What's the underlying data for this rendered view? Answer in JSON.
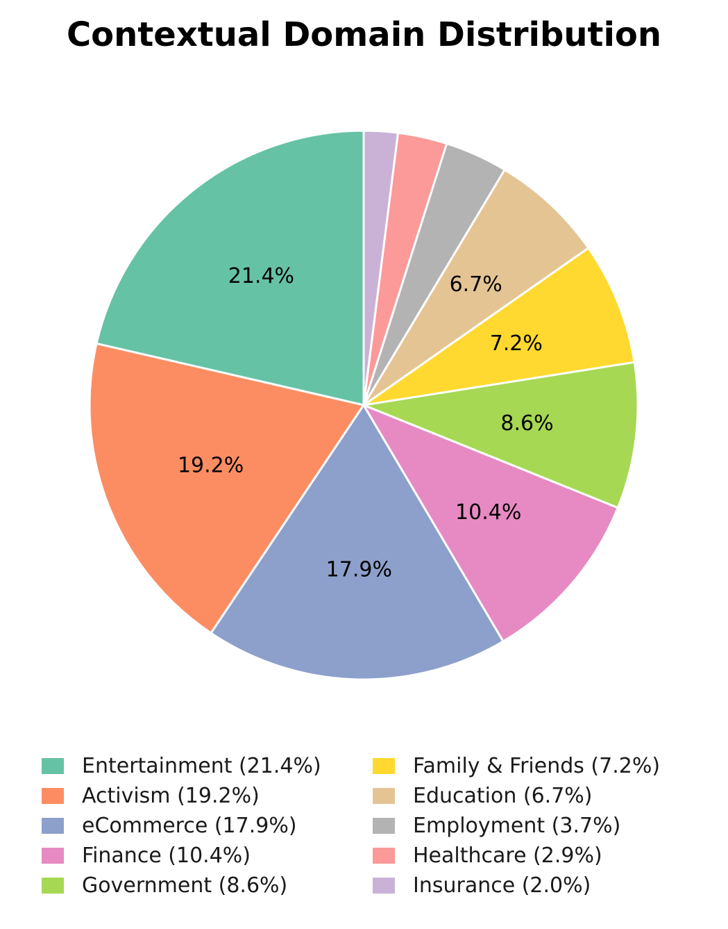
{
  "chart_data": {
    "type": "pie",
    "title": "Contextual Domain Distribution",
    "start_angle_deg": 90,
    "direction": "counterclockwise",
    "slices": [
      {
        "label": "Entertainment",
        "value": 21.4,
        "pct_label": "21.4%",
        "legend": "Entertainment (21.4%)",
        "color": "#66c2a5"
      },
      {
        "label": "Activism",
        "value": 19.2,
        "pct_label": "19.2%",
        "legend": "Activism (19.2%)",
        "color": "#fc8d62"
      },
      {
        "label": "eCommerce",
        "value": 17.9,
        "pct_label": "17.9%",
        "legend": "eCommerce (17.9%)",
        "color": "#8da0cb"
      },
      {
        "label": "Finance",
        "value": 10.4,
        "pct_label": "10.4%",
        "legend": "Finance (10.4%)",
        "color": "#e78ac3"
      },
      {
        "label": "Government",
        "value": 8.6,
        "pct_label": "8.6%",
        "legend": "Government (8.6%)",
        "color": "#a6d854"
      },
      {
        "label": "Family & Friends",
        "value": 7.2,
        "pct_label": "7.2%",
        "legend": "Family & Friends (7.2%)",
        "color": "#ffd92f"
      },
      {
        "label": "Education",
        "value": 6.7,
        "pct_label": "6.7%",
        "legend": "Education (6.7%)",
        "color": "#e5c494"
      },
      {
        "label": "Employment",
        "value": 3.7,
        "pct_label": "",
        "legend": "Employment (3.7%)",
        "color": "#b3b3b3"
      },
      {
        "label": "Healthcare",
        "value": 2.9,
        "pct_label": "",
        "legend": "Healthcare (2.9%)",
        "color": "#fb9a99"
      },
      {
        "label": "Insurance",
        "value": 2.0,
        "pct_label": "",
        "legend": "Insurance (2.0%)",
        "color": "#cab2d6"
      }
    ],
    "legend_position": "bottom",
    "legend_columns": 2
  }
}
